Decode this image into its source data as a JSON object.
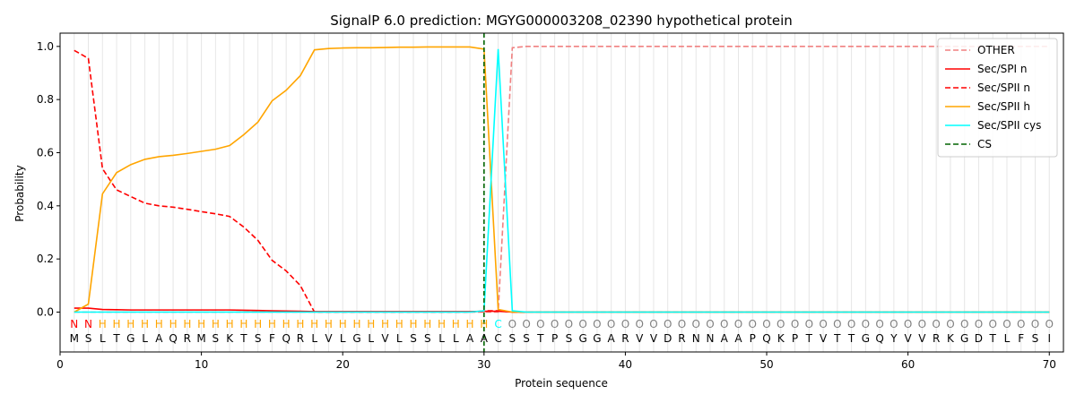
{
  "chart_data": {
    "type": "line",
    "title": "SignalP 6.0 prediction: MGYG000003208_02390 hypothetical protein",
    "xlabel": "Protein sequence",
    "ylabel": "Probability",
    "xlim": [
      0,
      71
    ],
    "ylim": [
      -0.15,
      1.05
    ],
    "x_ticks": [
      0,
      10,
      20,
      30,
      40,
      50,
      60,
      70
    ],
    "y_ticks": [
      0.0,
      0.2,
      0.4,
      0.6,
      0.8,
      1.0
    ],
    "grid": "vertical lines at each residue",
    "legend_position": "top-right",
    "sequence": [
      "M",
      "S",
      "L",
      "T",
      "G",
      "L",
      "A",
      "Q",
      "R",
      "M",
      "S",
      "K",
      "T",
      "S",
      "F",
      "Q",
      "R",
      "L",
      "V",
      "L",
      "G",
      "L",
      "V",
      "L",
      "S",
      "S",
      "L",
      "L",
      "A",
      "A",
      "C",
      "S",
      "S",
      "T",
      "P",
      "S",
      "G",
      "G",
      "A",
      "R",
      "V",
      "V",
      "D",
      "R",
      "N",
      "N",
      "A",
      "A",
      "P",
      "Q",
      "K",
      "P",
      "T",
      "V",
      "T",
      "T",
      "G",
      "Q",
      "Y",
      "V",
      "V",
      "R",
      "K",
      "G",
      "D",
      "T",
      "L",
      "F",
      "S",
      "I"
    ],
    "region_labels": [
      "N",
      "N",
      "H",
      "H",
      "H",
      "H",
      "H",
      "H",
      "H",
      "H",
      "H",
      "H",
      "H",
      "H",
      "H",
      "H",
      "H",
      "H",
      "H",
      "H",
      "H",
      "H",
      "H",
      "H",
      "H",
      "H",
      "H",
      "H",
      "H",
      "H",
      "C",
      "O",
      "O",
      "O",
      "O",
      "O",
      "O",
      "O",
      "O",
      "O",
      "O",
      "O",
      "O",
      "O",
      "O",
      "O",
      "O",
      "O",
      "O",
      "O",
      "O",
      "O",
      "O",
      "O",
      "O",
      "O",
      "O",
      "O",
      "O",
      "O",
      "O",
      "O",
      "O",
      "O",
      "O",
      "O",
      "O",
      "O",
      "O",
      "O"
    ],
    "region_colors": {
      "N": "#ff0000",
      "H": "#ffa500",
      "C": "#00ffff",
      "O": "#808080"
    },
    "cleavage_site": 30,
    "series": [
      {
        "name": "OTHER",
        "color": "#f08080",
        "dash": "dashed",
        "values": [
          0.0,
          0.0,
          0.0,
          0.0,
          0.0,
          0.0,
          0.0,
          0.0,
          0.0,
          0.0,
          0.0,
          0.0,
          0.0,
          0.0,
          0.0,
          0.0,
          0.0,
          0.0,
          0.0,
          0.0,
          0.0,
          0.0,
          0.0,
          0.0,
          0.0,
          0.0,
          0.0,
          0.0,
          0.0,
          0.0,
          0.0,
          0.995,
          1.0,
          1.0,
          1.0,
          1.0,
          1.0,
          1.0,
          1.0,
          1.0,
          1.0,
          1.0,
          1.0,
          1.0,
          1.0,
          1.0,
          1.0,
          1.0,
          1.0,
          1.0,
          1.0,
          1.0,
          1.0,
          1.0,
          1.0,
          1.0,
          1.0,
          1.0,
          1.0,
          1.0,
          1.0,
          1.0,
          1.0,
          1.0,
          1.0,
          1.0,
          1.0,
          1.0,
          1.0,
          1.0
        ]
      },
      {
        "name": "Sec/SPI n",
        "color": "#ff0000",
        "dash": "solid",
        "values": [
          0.015,
          0.015,
          0.01,
          0.009,
          0.008,
          0.008,
          0.008,
          0.008,
          0.008,
          0.008,
          0.008,
          0.008,
          0.007,
          0.006,
          0.005,
          0.004,
          0.003,
          0.002,
          0.002,
          0.002,
          0.002,
          0.002,
          0.002,
          0.002,
          0.002,
          0.002,
          0.002,
          0.002,
          0.002,
          0.003,
          0.003,
          0.0,
          0.0,
          0.0,
          0.0,
          0.0,
          0.0,
          0.0,
          0.0,
          0.0,
          0.0,
          0.0,
          0.0,
          0.0,
          0.0,
          0.0,
          0.0,
          0.0,
          0.0,
          0.0,
          0.0,
          0.0,
          0.0,
          0.0,
          0.0,
          0.0,
          0.0,
          0.0,
          0.0,
          0.0,
          0.0,
          0.0,
          0.0,
          0.0,
          0.0,
          0.0,
          0.0,
          0.0,
          0.0,
          0.0
        ]
      },
      {
        "name": "Sec/SPII n",
        "color": "#ff0000",
        "dash": "dashed",
        "values": [
          0.985,
          0.955,
          0.54,
          0.46,
          0.435,
          0.41,
          0.4,
          0.395,
          0.387,
          0.378,
          0.37,
          0.36,
          0.32,
          0.27,
          0.195,
          0.155,
          0.1,
          0.0,
          0.0,
          0.0,
          0.0,
          0.0,
          0.0,
          0.0,
          0.0,
          0.0,
          0.0,
          0.0,
          0.0,
          0.005,
          0.005,
          0.0,
          0.0,
          0.0,
          0.0,
          0.0,
          0.0,
          0.0,
          0.0,
          0.0,
          0.0,
          0.0,
          0.0,
          0.0,
          0.0,
          0.0,
          0.0,
          0.0,
          0.0,
          0.0,
          0.0,
          0.0,
          0.0,
          0.0,
          0.0,
          0.0,
          0.0,
          0.0,
          0.0,
          0.0,
          0.0,
          0.0,
          0.0,
          0.0,
          0.0,
          0.0,
          0.0,
          0.0,
          0.0,
          0.0
        ]
      },
      {
        "name": "Sec/SPII h",
        "color": "#ffa500",
        "dash": "solid",
        "values": [
          0.0,
          0.03,
          0.445,
          0.525,
          0.555,
          0.575,
          0.585,
          0.59,
          0.597,
          0.605,
          0.613,
          0.627,
          0.668,
          0.715,
          0.795,
          0.835,
          0.89,
          0.987,
          0.992,
          0.994,
          0.995,
          0.995,
          0.996,
          0.997,
          0.997,
          0.998,
          0.998,
          0.998,
          0.998,
          0.99,
          0.01,
          0.0,
          0.0,
          0.0,
          0.0,
          0.0,
          0.0,
          0.0,
          0.0,
          0.0,
          0.0,
          0.0,
          0.0,
          0.0,
          0.0,
          0.0,
          0.0,
          0.0,
          0.0,
          0.0,
          0.0,
          0.0,
          0.0,
          0.0,
          0.0,
          0.0,
          0.0,
          0.0,
          0.0,
          0.0,
          0.0,
          0.0,
          0.0,
          0.0,
          0.0,
          0.0,
          0.0,
          0.0,
          0.0,
          0.0
        ]
      },
      {
        "name": "Sec/SPII cys",
        "color": "#00ffff",
        "dash": "solid",
        "values": [
          0.0,
          0.0,
          0.0,
          0.0,
          0.0,
          0.0,
          0.0,
          0.0,
          0.0,
          0.0,
          0.0,
          0.0,
          0.0,
          0.0,
          0.0,
          0.0,
          0.0,
          0.0,
          0.0,
          0.0,
          0.0,
          0.0,
          0.0,
          0.0,
          0.0,
          0.0,
          0.0,
          0.0,
          0.0,
          0.005,
          0.99,
          0.005,
          0.0,
          0.0,
          0.0,
          0.0,
          0.0,
          0.0,
          0.0,
          0.0,
          0.0,
          0.0,
          0.0,
          0.0,
          0.0,
          0.0,
          0.0,
          0.0,
          0.0,
          0.0,
          0.0,
          0.0,
          0.0,
          0.0,
          0.0,
          0.0,
          0.0,
          0.0,
          0.0,
          0.0,
          0.0,
          0.0,
          0.0,
          0.0,
          0.0,
          0.0,
          0.0,
          0.0,
          0.0,
          0.0
        ]
      }
    ],
    "cs_legend": {
      "name": "CS",
      "color": "#006400",
      "dash": "dashed"
    }
  }
}
